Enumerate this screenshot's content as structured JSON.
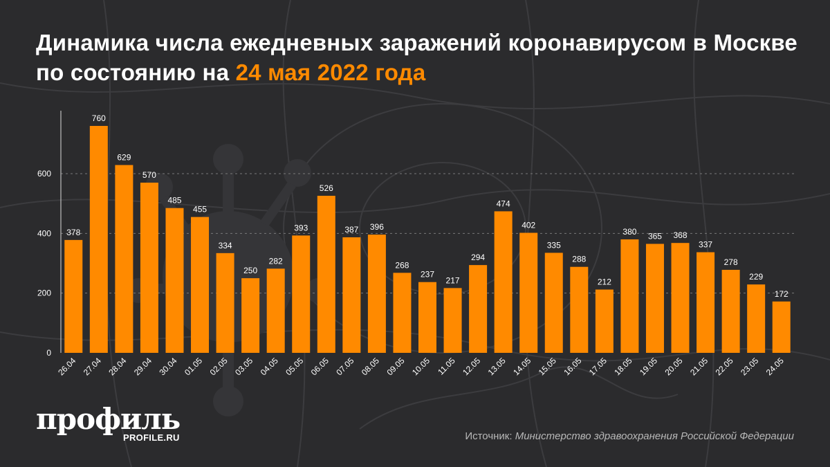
{
  "title": {
    "main": "Динамика числа ежедневных заражений коронавирусом в Москве по состоянию на",
    "highlight": "24 мая 2022 года"
  },
  "logo": {
    "name": "профиль",
    "site": "PROFILE.RU"
  },
  "source": {
    "label": "Источник:",
    "value": "Министерство здравоохранения Российской Федерации"
  },
  "colors": {
    "accent": "#ff8a00",
    "bar": "#ff8a00",
    "background": "#2b2b2d"
  },
  "chart_data": {
    "type": "bar",
    "title": "Динамика числа ежедневных заражений коронавирусом в Москве по состоянию на 24 мая 2022 года",
    "xlabel": "",
    "ylabel": "",
    "categories": [
      "26.04",
      "27.04",
      "28.04",
      "29.04",
      "30.04",
      "01.05",
      "02.05",
      "03.05",
      "04.05",
      "05.05",
      "06.05",
      "07.05",
      "08.05",
      "09.05",
      "10.05",
      "11.05",
      "12.05",
      "13.05",
      "14.05",
      "15.05",
      "16.05",
      "17.05",
      "18.05",
      "19.05",
      "20.05",
      "21.05",
      "22.05",
      "23.05",
      "24.05"
    ],
    "values": [
      378,
      760,
      629,
      570,
      485,
      455,
      334,
      250,
      282,
      393,
      526,
      387,
      396,
      268,
      237,
      217,
      294,
      474,
      402,
      335,
      288,
      212,
      380,
      365,
      368,
      337,
      278,
      229,
      172
    ],
    "ylim": [
      0,
      760
    ],
    "yticks": [
      0,
      200,
      400,
      600
    ],
    "grid": true,
    "data_labels": true
  }
}
